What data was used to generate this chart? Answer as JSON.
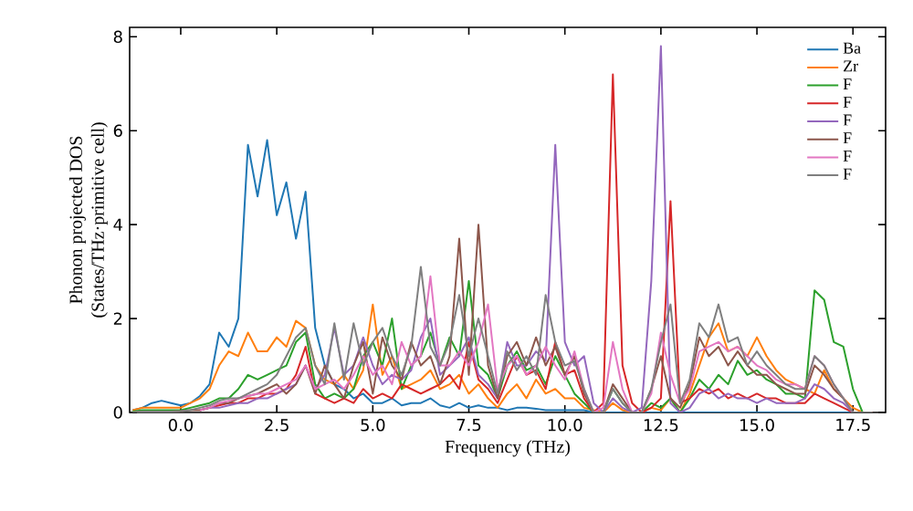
{
  "chart_data": {
    "type": "line",
    "xlabel": "Frequency (THz)",
    "ylabel": "Phonon projected DOS\n(States/THz·primitive cell)",
    "x": [
      -1.25,
      -1.0,
      -0.75,
      -0.5,
      -0.25,
      0.0,
      0.25,
      0.5,
      0.75,
      1.0,
      1.25,
      1.5,
      1.75,
      2.0,
      2.25,
      2.5,
      2.75,
      3.0,
      3.25,
      3.5,
      3.75,
      4.0,
      4.25,
      4.5,
      4.75,
      5.0,
      5.25,
      5.5,
      5.75,
      6.0,
      6.25,
      6.5,
      6.75,
      7.0,
      7.25,
      7.5,
      7.75,
      8.0,
      8.25,
      8.5,
      8.75,
      9.0,
      9.25,
      9.5,
      9.75,
      10.0,
      10.25,
      10.5,
      10.75,
      11.0,
      11.25,
      11.5,
      11.75,
      12.0,
      12.25,
      12.5,
      12.75,
      13.0,
      13.25,
      13.5,
      13.75,
      14.0,
      14.25,
      14.5,
      14.75,
      15.0,
      15.25,
      15.5,
      15.75,
      16.0,
      16.25,
      16.5,
      16.75,
      17.0,
      17.25,
      17.5,
      17.75,
      18.0
    ],
    "series": [
      {
        "name": "Ba",
        "color": "#1f77b4",
        "values": [
          0.05,
          0.1,
          0.2,
          0.25,
          0.2,
          0.15,
          0.2,
          0.35,
          0.6,
          1.7,
          1.4,
          2.0,
          5.7,
          4.6,
          5.8,
          4.2,
          4.9,
          3.7,
          4.7,
          1.8,
          1.0,
          0.6,
          0.5,
          0.3,
          0.4,
          0.2,
          0.2,
          0.3,
          0.15,
          0.2,
          0.2,
          0.3,
          0.15,
          0.1,
          0.2,
          0.1,
          0.15,
          0.1,
          0.1,
          0.05,
          0.1,
          0.1,
          0.08,
          0.05,
          0.05,
          0.05,
          0.05,
          0.05,
          0,
          0,
          0,
          0,
          0,
          0,
          0,
          0,
          0,
          0,
          0,
          0,
          0,
          0,
          0,
          0,
          0,
          0,
          0,
          0,
          0,
          0,
          0,
          0,
          0,
          0,
          0,
          0,
          0,
          0
        ]
      },
      {
        "name": "Zr",
        "color": "#ff7f0e",
        "values": [
          0.05,
          0.1,
          0.1,
          0.1,
          0.1,
          0.1,
          0.2,
          0.3,
          0.5,
          1.0,
          1.3,
          1.2,
          1.7,
          1.3,
          1.3,
          1.6,
          1.4,
          1.95,
          1.8,
          1.0,
          0.7,
          0.6,
          0.8,
          0.5,
          0.9,
          2.3,
          0.8,
          1.2,
          0.5,
          0.6,
          0.7,
          0.9,
          0.5,
          0.6,
          0.8,
          0.4,
          0.6,
          0.3,
          0.1,
          0.4,
          0.6,
          0.3,
          0.7,
          0.4,
          0.5,
          0.3,
          0.3,
          0.1,
          0.05,
          0,
          0.2,
          0.05,
          0,
          0,
          0.1,
          0.05,
          0.3,
          0,
          0.4,
          1.0,
          1.6,
          1.9,
          1.3,
          1.4,
          1.2,
          1.6,
          1.2,
          0.9,
          0.7,
          0.6,
          0.5,
          0.4,
          0.9,
          0.5,
          0.3,
          0.1,
          0,
          0
        ]
      },
      {
        "name": "F",
        "color": "#2ca02c",
        "values": [
          0.02,
          0.05,
          0.05,
          0.05,
          0.05,
          0.05,
          0.1,
          0.15,
          0.2,
          0.3,
          0.3,
          0.5,
          0.8,
          0.7,
          0.8,
          0.9,
          1.0,
          1.5,
          1.7,
          0.6,
          0.3,
          0.4,
          0.3,
          0.5,
          1.2,
          1.5,
          1.0,
          2.0,
          0.5,
          1.0,
          1.2,
          1.7,
          1.0,
          1.6,
          1.2,
          2.8,
          1.0,
          0.8,
          0.3,
          1.0,
          1.3,
          0.9,
          1.0,
          0.6,
          1.2,
          0.8,
          0.4,
          0.2,
          0,
          0,
          0.5,
          0.2,
          0,
          0,
          0.2,
          0.1,
          0.3,
          0,
          0.3,
          0.7,
          0.5,
          0.8,
          0.6,
          1.1,
          0.8,
          0.9,
          0.7,
          0.6,
          0.4,
          0.4,
          0.3,
          2.6,
          2.4,
          1.5,
          1.4,
          0.5,
          0,
          0
        ]
      },
      {
        "name": "F",
        "color": "#d62728",
        "values": [
          null,
          null,
          null,
          null,
          null,
          null,
          null,
          0.05,
          0.1,
          0.15,
          0.2,
          0.2,
          0.3,
          0.3,
          0.4,
          0.4,
          0.5,
          0.8,
          1.4,
          0.4,
          0.3,
          0.2,
          0.3,
          0.2,
          0.5,
          0.3,
          0.4,
          0.3,
          0.6,
          0.5,
          0.4,
          0.5,
          0.6,
          0.8,
          0.5,
          1.5,
          0.7,
          0.5,
          0.2,
          0.7,
          1.2,
          0.8,
          0.9,
          0.5,
          1.5,
          0.8,
          0.9,
          0.3,
          0,
          0.2,
          7.2,
          1.0,
          0.2,
          0,
          0.1,
          0.3,
          4.5,
          0.2,
          0.3,
          0.5,
          0.4,
          0.5,
          0.3,
          0.4,
          0.3,
          0.4,
          0.3,
          0.3,
          0.2,
          0.2,
          0.2,
          0.4,
          0.3,
          0.2,
          0.1,
          0,
          0,
          0
        ]
      },
      {
        "name": "F",
        "color": "#9467bd",
        "values": [
          null,
          null,
          null,
          null,
          null,
          null,
          null,
          0.05,
          0.1,
          0.1,
          0.15,
          0.2,
          0.2,
          0.3,
          0.3,
          0.4,
          0.5,
          0.6,
          1.0,
          0.5,
          0.8,
          1.8,
          0.8,
          1.0,
          1.6,
          1.0,
          0.6,
          0.8,
          0.7,
          0.9,
          1.6,
          2.0,
          0.8,
          1.0,
          1.2,
          1.6,
          0.8,
          0.6,
          0.3,
          1.5,
          1.0,
          1.0,
          1.3,
          1.1,
          5.7,
          1.5,
          1.0,
          1.2,
          0.2,
          0,
          0.3,
          0.1,
          0,
          0.1,
          2.8,
          7.8,
          0.2,
          0,
          0.1,
          0.4,
          0.5,
          0.3,
          0.4,
          0.3,
          0.3,
          0.2,
          0.3,
          0.2,
          0.2,
          0.2,
          0.3,
          0.6,
          0.5,
          0.3,
          0.2,
          0,
          0,
          0
        ]
      },
      {
        "name": "F",
        "color": "#8c564b",
        "values": [
          0,
          0.02,
          0.02,
          0.02,
          0.02,
          0.03,
          0.05,
          0.05,
          0.1,
          0.2,
          0.2,
          0.3,
          0.35,
          0.4,
          0.5,
          0.6,
          0.4,
          0.6,
          1.0,
          0.4,
          1.0,
          0.6,
          0.3,
          1.0,
          1.5,
          0.4,
          1.6,
          1.0,
          0.7,
          1.5,
          1.0,
          1.2,
          0.6,
          1.2,
          3.7,
          0.8,
          4.0,
          1.0,
          0.3,
          1.2,
          1.5,
          1.0,
          1.6,
          1.0,
          1.4,
          0.8,
          1.2,
          0.4,
          0,
          0,
          0.6,
          0.3,
          0,
          0,
          0.5,
          1.2,
          0.3,
          0.1,
          0.6,
          1.6,
          1.2,
          1.4,
          1.0,
          1.3,
          1.0,
          0.8,
          0.8,
          0.6,
          0.5,
          0.4,
          0.4,
          1.0,
          0.8,
          0.5,
          0.3,
          0,
          0,
          0
        ]
      },
      {
        "name": "F",
        "color": "#e377c2",
        "values": [
          null,
          null,
          null,
          null,
          null,
          null,
          null,
          0.05,
          0.1,
          0.2,
          0.25,
          0.3,
          0.35,
          0.4,
          0.4,
          0.5,
          0.6,
          0.7,
          1.0,
          0.5,
          0.6,
          0.7,
          0.5,
          0.8,
          1.2,
          0.8,
          1.0,
          0.6,
          1.5,
          1.0,
          1.2,
          2.9,
          1.0,
          1.0,
          1.3,
          1.0,
          1.5,
          2.3,
          0.5,
          1.0,
          1.2,
          0.8,
          1.0,
          1.4,
          1.0,
          0.7,
          1.3,
          0.5,
          0,
          0.1,
          1.5,
          0.5,
          0,
          0,
          0.4,
          1.7,
          0.8,
          0.2,
          0.5,
          1.3,
          1.4,
          1.5,
          1.3,
          1.4,
          1.2,
          1.0,
          0.9,
          0.7,
          0.6,
          0.6,
          0.5,
          1.2,
          1.0,
          0.6,
          0.3,
          0,
          null,
          null
        ]
      },
      {
        "name": "F",
        "color": "#7f7f7f",
        "values": [
          0,
          0.02,
          0.02,
          0.02,
          0.02,
          0.03,
          0.05,
          0.1,
          0.15,
          0.25,
          0.3,
          0.3,
          0.4,
          0.5,
          0.6,
          0.8,
          1.2,
          1.6,
          1.8,
          1.0,
          0.6,
          1.9,
          0.7,
          1.9,
          1.0,
          1.5,
          1.8,
          1.2,
          0.8,
          1.4,
          3.1,
          1.4,
          1.0,
          1.5,
          2.5,
          1.2,
          2.0,
          1.2,
          0.4,
          1.3,
          0.9,
          1.2,
          0.8,
          2.5,
          1.5,
          1.0,
          1.1,
          0.5,
          0,
          0,
          0.5,
          0.2,
          0,
          0,
          0.5,
          1.5,
          2.3,
          0.2,
          0.7,
          1.9,
          1.6,
          2.3,
          1.5,
          1.6,
          1.0,
          1.3,
          1.0,
          0.8,
          0.6,
          0.5,
          0.5,
          1.2,
          1.0,
          0.6,
          0.3,
          0,
          0,
          0
        ]
      }
    ],
    "xlim": [
      -1.33,
      18.35
    ],
    "ylim": [
      0,
      8.2
    ],
    "xticks": [
      {
        "value": 0,
        "label": "0.0"
      },
      {
        "value": 2.5,
        "label": "2.5"
      },
      {
        "value": 5,
        "label": "5.0"
      },
      {
        "value": 7.5,
        "label": "7.5"
      },
      {
        "value": 10,
        "label": "10.0"
      },
      {
        "value": 12.5,
        "label": "12.5"
      },
      {
        "value": 15,
        "label": "15.0"
      },
      {
        "value": 17.5,
        "label": "17.5"
      }
    ],
    "yticks": [
      0,
      2,
      4,
      6,
      8
    ],
    "legend": "top right",
    "grid": false,
    "marker": "none",
    "line_style": "solid"
  }
}
